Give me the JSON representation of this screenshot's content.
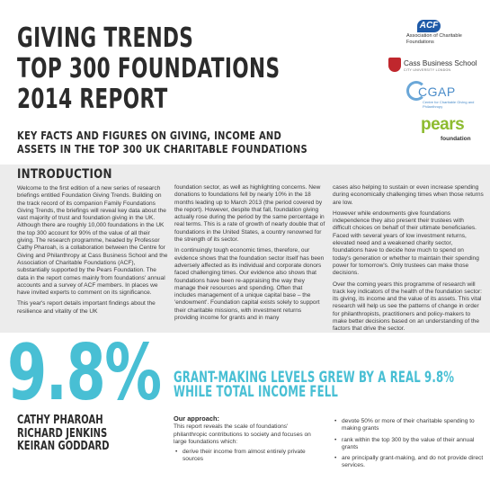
{
  "title": {
    "line1": "GIVING TRENDS",
    "line2": "TOP 300 FOUNDATIONS",
    "line3": "2014 REPORT"
  },
  "subtitle": {
    "line1": "KEY FACTS AND FIGURES ON GIVING, INCOME AND",
    "line2": "ASSETS IN THE TOP 300 UK CHARITABLE FOUNDATIONS"
  },
  "logos": {
    "acf_mark": "ACF",
    "acf_caption": "Association of Charitable Foundations",
    "cass_name": "Cass Business School",
    "cass_sub": "CITY UNIVERSITY LONDON",
    "cgap_name": "CGAP",
    "cgap_sub": "Centre for Charitable Giving and Philanthropy",
    "pears_name": "pears",
    "pears_sub": "foundation"
  },
  "intro": {
    "heading": "INTRODUCTION",
    "col1": [
      "Welcome to the first edition of a new series of research briefings entitled Foundation Giving Trends. Building on the track record of its companion Family Foundations Giving Trends, the briefings will reveal key data about the vast majority of trust and foundation giving in the UK. Although there are roughly 10,000 foundations in the UK the top 300 account for 90% of the value of all their giving. The research programme, headed by Professor Cathy Pharoah, is a collaboration between the Centre for Giving and Philanthropy at Cass Business School and the Association of Charitable Foundations (ACF), substantially supported by the Pears Foundation. The data in the report comes mainly from foundations' annual accounts and a survey of ACF members. In places we have invited experts to comment on its significance.",
      "This year's report details important findings about the resilience and vitality of the UK"
    ],
    "col2": [
      "foundation sector, as well as highlighting concerns. New donations to foundations fell by nearly 10% in the 18 months leading up to March 2013 (the period covered by the report). However, despite that fall, foundation giving actually rose during the period by the same percentage in real terms. This is a rate of growth of nearly double that of foundations in the United States, a country renowned for the strength of its sector.",
      "In continuingly tough economic times, therefore, our evidence shows that the foundation sector itself has been adversely affected as its individual and corporate donors faced challenging times. Our evidence also shows that foundations have been re-appraising the way they manage their resources and spending. Often that includes management of a unique capital base – the 'endowment'. Foundation capital exists solely to support their charitable missions, with investment returns providing income for grants and in many"
    ],
    "col3": [
      "cases also helping to sustain or even increase spending during economically challenging times when those returns are low.",
      "However while endowments give foundations independence they also present their trustees with difficult choices on behalf of their ultimate beneficiaries. Faced with several years of low investment returns, elevated need and a weakened charity sector, foundations have to decide how much to spend on today's generation or whether to maintain their spending power for tomorrow's. Only trustees can make those decisions.",
      "Over the coming years this programme of research will track key indicators of the health of the foundation sector: its giving, its income and the value of its assets. This vital research will help us see the patterns of change in order for philanthropists, practitioners and policy-makers to make better decisions based on an understanding of the factors that drive the sector."
    ]
  },
  "stat": {
    "value": "9.8%",
    "headline1": "GRANT-MAKING LEVELS GREW BY A REAL 9.8%",
    "headline2": "WHILE TOTAL INCOME FELL"
  },
  "authors": [
    "CATHY PHAROAH",
    "RICHARD JENKINS",
    "KEIRAN GODDARD"
  ],
  "approach": {
    "heading": "Our approach:",
    "text": "This report reveals the scale of foundations' philanthropic contributions to society and focuses on large foundations which:",
    "bullets_left": [
      "derive their income from almost entirely private sources"
    ],
    "bullets_right": [
      "devote 50% or more of their charitable spending to making grants",
      "rank within the top 300 by the value of their annual grants",
      "are principally grant-making, and do not provide direct services."
    ]
  }
}
